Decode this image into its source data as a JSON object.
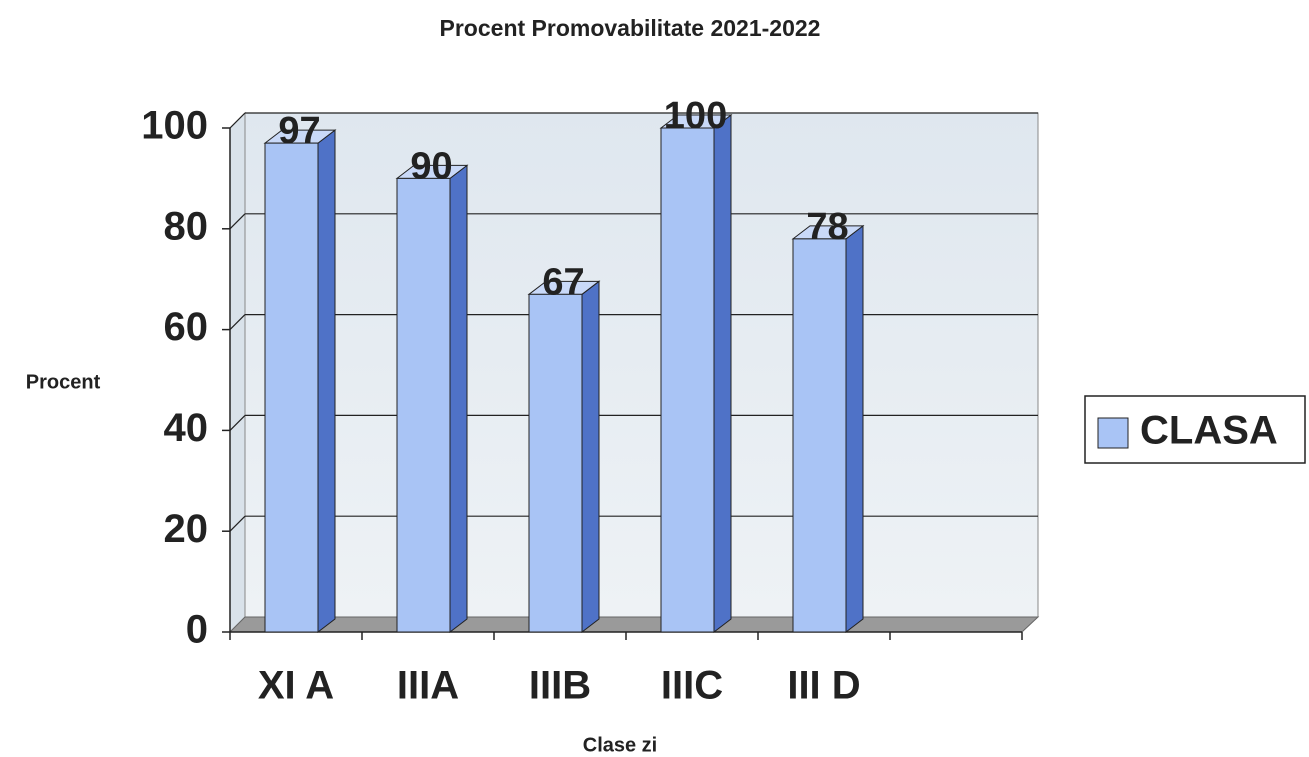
{
  "chart_data": {
    "type": "bar",
    "title": "Procent Promovabilitate 2021-2022",
    "x_label": "Clase zi",
    "y_label": "Procent",
    "categories": [
      "XI A",
      "IIIA",
      "IIIB",
      "IIIC",
      "III D",
      null
    ],
    "series": [
      {
        "name": "CLASA",
        "color": "#a9c4f5",
        "values": [
          97,
          90,
          67,
          100,
          78,
          null
        ]
      }
    ],
    "ylim": [
      0,
      100
    ],
    "yticks": [
      0,
      20,
      40,
      60,
      80,
      100
    ],
    "grid": true,
    "legend": "right"
  }
}
